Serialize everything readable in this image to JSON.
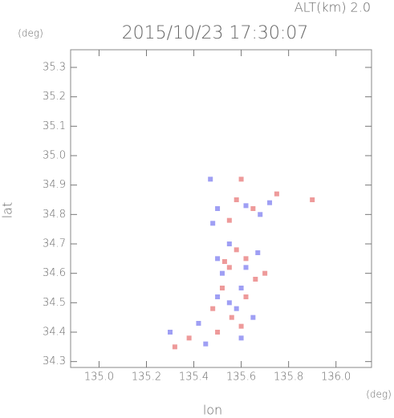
{
  "chart_data": {
    "type": "scatter",
    "title": "2015/10/23 17:30:07",
    "subtitle": "ALT(km) 2.0",
    "x_label": "lon",
    "y_label": "lat",
    "x_unit": "(deg)",
    "y_unit": "(deg)",
    "xlim": [
      134.88,
      136.15
    ],
    "ylim": [
      34.28,
      35.36
    ],
    "xticks": [
      {
        "value": 135.0,
        "label": "135.0"
      },
      135.2,
      135.4,
      135.6,
      135.8,
      {
        "value": 136.0,
        "label": "136.0"
      }
    ],
    "yticks": [
      34.3,
      34.4,
      34.5,
      34.6,
      34.7,
      34.8,
      34.9,
      {
        "value": 35.0,
        "label": "35.0"
      },
      35.1,
      35.2,
      35.3
    ],
    "series": [
      {
        "color": "#7f7ff0",
        "x": [
          135.47,
          135.5,
          135.48,
          135.62,
          135.68,
          135.55,
          135.5,
          135.62,
          135.6,
          135.5,
          135.55,
          135.58,
          135.65,
          135.42,
          135.45,
          135.6,
          135.3,
          135.52,
          135.67,
          135.72
        ],
        "values": [
          34.92,
          34.82,
          34.77,
          34.83,
          34.8,
          34.7,
          34.65,
          34.62,
          34.55,
          34.52,
          34.5,
          34.48,
          34.45,
          34.43,
          34.36,
          34.38,
          34.4,
          34.6,
          34.67,
          34.84
        ]
      },
      {
        "color": "#e87878",
        "x": [
          135.6,
          135.75,
          135.58,
          135.55,
          135.65,
          135.58,
          135.62,
          135.55,
          135.66,
          135.52,
          135.62,
          135.48,
          135.56,
          135.6,
          135.38,
          135.32,
          135.5,
          135.9,
          135.53,
          135.7
        ],
        "values": [
          34.92,
          34.87,
          34.85,
          34.78,
          34.82,
          34.68,
          34.65,
          34.62,
          34.58,
          34.55,
          34.52,
          34.48,
          34.45,
          34.42,
          34.38,
          34.35,
          34.4,
          34.85,
          34.64,
          34.6
        ]
      }
    ]
  }
}
